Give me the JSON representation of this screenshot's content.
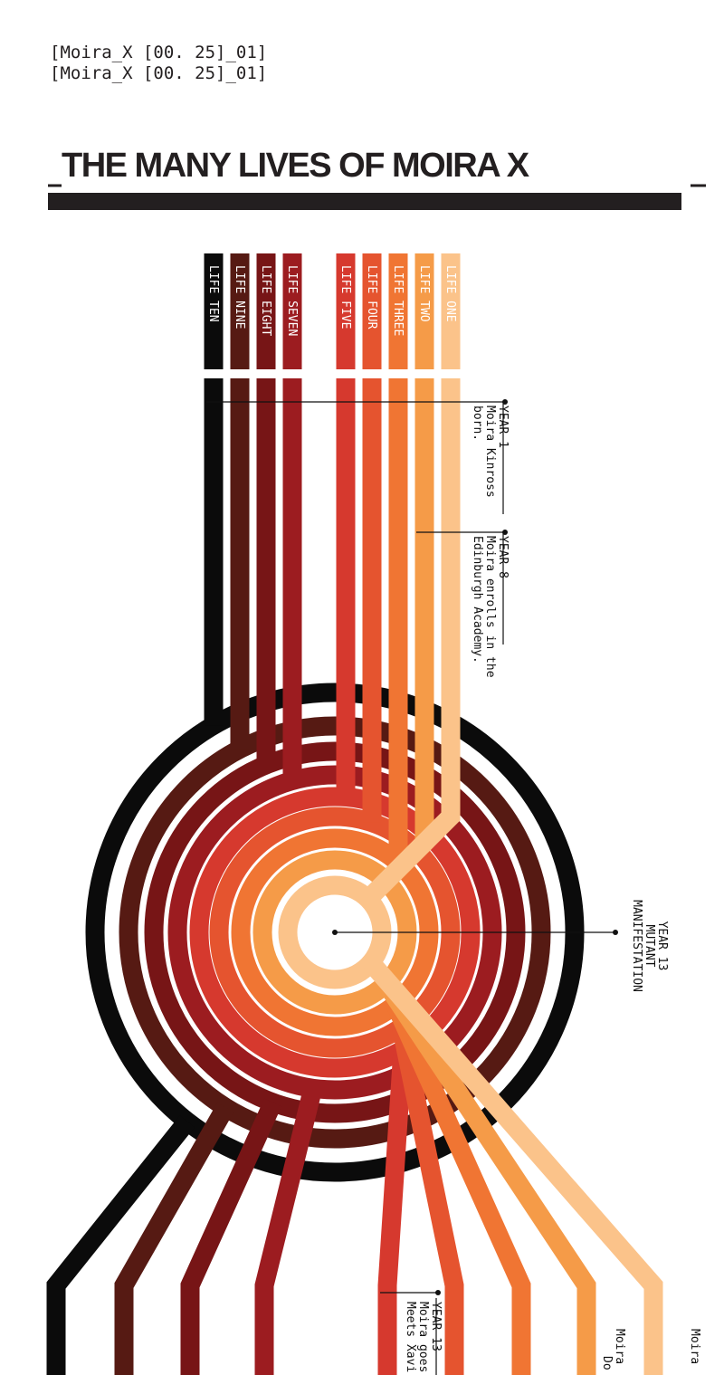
{
  "header": {
    "codes": [
      "[Moira_X [00. 25]_01]",
      "[Moira_X [00. 25]_01]"
    ],
    "title": "THE MANY LIVES OF MOIRA X"
  },
  "lives": [
    {
      "label": "LIFE TEN",
      "color": "#0b0b0b"
    },
    {
      "label": "LIFE NINE",
      "color": "#561a13"
    },
    {
      "label": "LIFE EIGHT",
      "color": "#771516"
    },
    {
      "label": "LIFE SEVEN",
      "color": "#9c1c20"
    },
    {
      "label": "LIFE FIVE",
      "color": "#d6392e"
    },
    {
      "label": "LIFE FOUR",
      "color": "#e5542f"
    },
    {
      "label": "LIFE THREE",
      "color": "#f07533"
    },
    {
      "label": "LIFE TWO",
      "color": "#f59b48"
    },
    {
      "label": "LIFE ONE",
      "color": "#fbc38a"
    }
  ],
  "annotations": [
    {
      "lines": [
        "YEAR 1",
        "Moira Kinross",
        "born."
      ]
    },
    {
      "lines": [
        "YEAR 8",
        "Moira enrolls in the",
        "Edinburgh Academy."
      ]
    },
    {
      "lines": [
        "YEAR 13",
        "MUTANT",
        "MANIFESTATION"
      ]
    },
    {
      "lines": [
        "YEAR 13",
        "Moira goes",
        "Meets Xavi"
      ]
    },
    {
      "lines": [
        "Moira",
        "Do"
      ]
    },
    {
      "lines": [
        "Moira"
      ]
    }
  ]
}
